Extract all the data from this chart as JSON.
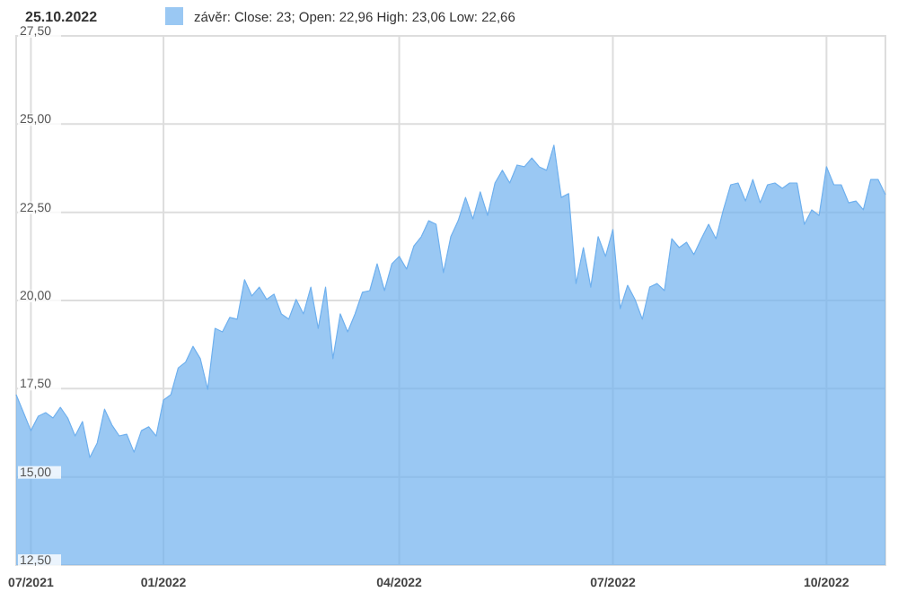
{
  "chart_data": {
    "type": "area",
    "title": "25.10.2022",
    "legend": "top left",
    "grid": true,
    "categories": [
      null,
      null,
      "07/2021",
      null,
      null,
      null,
      null,
      null,
      null,
      null,
      null,
      null,
      null,
      null,
      null,
      null,
      null,
      null,
      null,
      null,
      "01/2022",
      null,
      null,
      null,
      null,
      null,
      null,
      null,
      null,
      null,
      null,
      null,
      null,
      null,
      null,
      null,
      null,
      null,
      null,
      null,
      null,
      null,
      null,
      null,
      null,
      null,
      null,
      null,
      null,
      null,
      null,
      null,
      "04/2022",
      null,
      null,
      null,
      null,
      null,
      null,
      null,
      null,
      null,
      null,
      null,
      null,
      null,
      null,
      null,
      null,
      null,
      null,
      null,
      null,
      null,
      null,
      null,
      null,
      null,
      null,
      null,
      null,
      "07/2022",
      null,
      null,
      null,
      null,
      null,
      null,
      null,
      null,
      null,
      null,
      null,
      null,
      null,
      null,
      null,
      null,
      null,
      null,
      null,
      null,
      null,
      null,
      null,
      null,
      null,
      null,
      null,
      null,
      "10/2022",
      null,
      null,
      null,
      null,
      null,
      null,
      null,
      null
    ],
    "series": [
      {
        "name": "závěr: Close: 23; Open: 22,96 High: 23,06 Low: 22,66",
        "color": "#6fb0ee",
        "values": [
          17.33,
          16.82,
          16.31,
          16.72,
          16.82,
          16.67,
          16.97,
          16.67,
          16.16,
          16.57,
          15.55,
          15.96,
          16.92,
          16.47,
          16.16,
          16.21,
          15.7,
          16.31,
          16.42,
          16.16,
          17.18,
          17.33,
          18.09,
          18.25,
          18.7,
          18.35,
          17.48,
          19.21,
          19.11,
          19.52,
          19.47,
          20.59,
          20.13,
          20.38,
          20.03,
          20.18,
          19.62,
          19.47,
          20.03,
          19.62,
          20.38,
          19.21,
          20.38,
          18.35,
          19.62,
          19.11,
          19.62,
          20.23,
          20.28,
          21.04,
          20.28,
          21.04,
          21.25,
          20.89,
          21.55,
          21.81,
          22.26,
          22.16,
          20.79,
          21.81,
          22.26,
          22.92,
          22.31,
          23.08,
          22.41,
          23.33,
          23.69,
          23.33,
          23.84,
          23.79,
          24.04,
          23.79,
          23.69,
          24.4,
          22.92,
          23.03,
          20.48,
          21.5,
          20.38,
          21.81,
          21.25,
          22.01,
          19.77,
          20.43,
          20.03,
          19.47,
          20.38,
          20.48,
          20.28,
          21.75,
          21.5,
          21.65,
          21.3,
          21.75,
          22.16,
          21.75,
          22.57,
          23.28,
          23.33,
          22.82,
          23.43,
          22.77,
          23.28,
          23.33,
          23.18,
          23.33,
          23.33,
          22.16,
          22.57,
          22.41,
          23.79,
          23.28,
          23.28,
          22.77,
          22.82,
          22.57,
          23.43,
          23.43,
          23
        ]
      }
    ],
    "ylim": [
      12.5,
      27.5
    ],
    "yticks": [
      {
        "value": 12.5,
        "label": "12,50"
      },
      {
        "value": 15,
        "label": "15,00"
      },
      {
        "value": 17.5,
        "label": "17,50"
      },
      {
        "value": 20,
        "label": "20,00"
      },
      {
        "value": 22.5,
        "label": "22,50"
      },
      {
        "value": 25,
        "label": "25,00"
      },
      {
        "value": 27.5,
        "label": "27,50"
      }
    ]
  }
}
